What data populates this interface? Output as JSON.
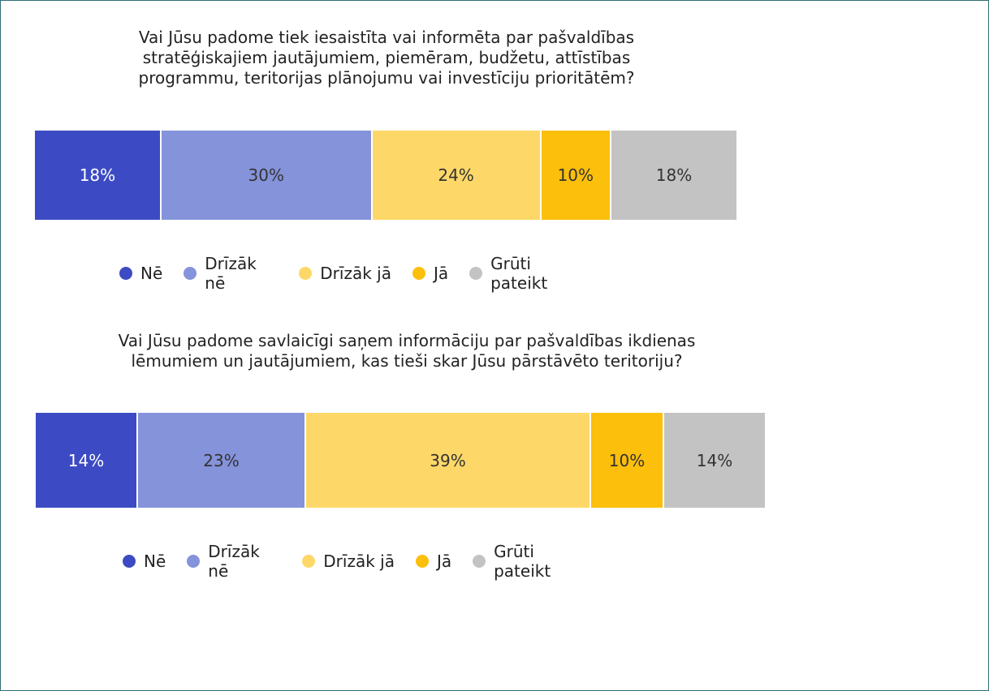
{
  "chart_data": [
    {
      "type": "stacked-bar",
      "title": "Vai Jūsu padome tiek iesaistīta vai informēta par pašvaldības stratēģiskajiem jautājumiem, piemēram, budžetu, attīstības programmu, teritorijas plānojumu vai investīciju prioritātēm?",
      "series": [
        {
          "name": "Nē",
          "color": "#3c4bc4",
          "values": [
            18
          ],
          "value_labels": [
            "18%"
          ]
        },
        {
          "name": "Drīzāk nē",
          "color": "#8593db",
          "values": [
            30
          ],
          "value_labels": [
            "30%"
          ]
        },
        {
          "name": "Drīzāk jā",
          "color": "#fdd868",
          "values": [
            24
          ],
          "value_labels": [
            "24%"
          ]
        },
        {
          "name": "Jā",
          "color": "#fbbf0c",
          "values": [
            10
          ],
          "value_labels": [
            "10%"
          ]
        },
        {
          "name": "Grūti pateikt",
          "color": "#c3c3c3",
          "values": [
            18
          ],
          "value_labels": [
            "18%"
          ]
        }
      ]
    },
    {
      "type": "stacked-bar",
      "title": "Vai Jūsu padome savlaicīgi saņem informāciju par pašvaldības ikdienas lēmumiem un jautājumiem, kas tieši skar Jūsu pārstāvēto teritoriju?",
      "series": [
        {
          "name": "Nē",
          "color": "#3c4bc4",
          "values": [
            14
          ],
          "value_labels": [
            "14%"
          ]
        },
        {
          "name": "Drīzāk nē",
          "color": "#8593db",
          "values": [
            23
          ],
          "value_labels": [
            "23%"
          ]
        },
        {
          "name": "Drīzāk jā",
          "color": "#fdd868",
          "values": [
            39
          ],
          "value_labels": [
            "39%"
          ]
        },
        {
          "name": "Jā",
          "color": "#fbbf0c",
          "values": [
            10
          ],
          "value_labels": [
            "10%"
          ]
        },
        {
          "name": "Grūti pateikt",
          "color": "#c3c3c3",
          "values": [
            14
          ],
          "value_labels": [
            "14%"
          ]
        }
      ]
    }
  ]
}
